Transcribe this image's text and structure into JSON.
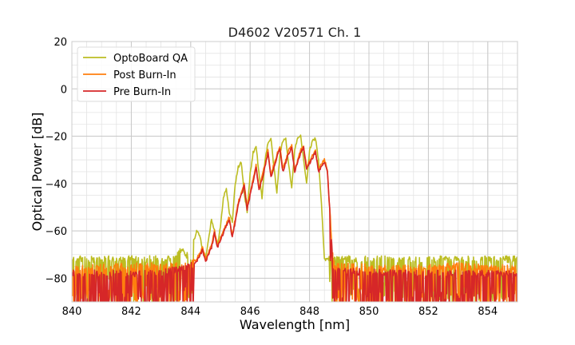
{
  "chart_data": {
    "type": "line",
    "title": "D4602 V20571 Ch. 1",
    "xlabel": "Wavelength [nm]",
    "ylabel": "Optical Power [dB]",
    "xlim": [
      840,
      855
    ],
    "ylim": [
      -90,
      20
    ],
    "xticks": [
      840,
      842,
      844,
      846,
      848,
      850,
      852,
      854
    ],
    "yticks": [
      20,
      0,
      -20,
      -40,
      -60,
      -80
    ],
    "xtick_labels": [
      "840",
      "842",
      "844",
      "846",
      "848",
      "850",
      "852",
      "854"
    ],
    "ytick_labels": [
      "20",
      "0",
      "−20",
      "−40",
      "−60",
      "−80"
    ],
    "grid": true,
    "legend_position": "top-left",
    "series": [
      {
        "name": "OptoBoard QA",
        "color": "#bcbd22",
        "points": [
          [
            840,
            -72
          ],
          [
            842,
            -72
          ],
          [
            843,
            -72
          ],
          [
            843.4,
            -71
          ],
          [
            843.7,
            -68
          ],
          [
            844,
            -72
          ],
          [
            844.1,
            -65
          ],
          [
            844.2,
            -60
          ],
          [
            844.3,
            -62
          ],
          [
            844.4,
            -68
          ],
          [
            844.5,
            -72
          ],
          [
            844.6,
            -64
          ],
          [
            844.7,
            -55
          ],
          [
            844.8,
            -60
          ],
          [
            844.9,
            -66
          ],
          [
            845,
            -58
          ],
          [
            845.1,
            -46
          ],
          [
            845.2,
            -42
          ],
          [
            845.3,
            -52
          ],
          [
            845.4,
            -56
          ],
          [
            845.5,
            -40
          ],
          [
            845.6,
            -33
          ],
          [
            845.7,
            -31
          ],
          [
            845.8,
            -44
          ],
          [
            845.9,
            -52
          ],
          [
            846,
            -36
          ],
          [
            846.1,
            -27
          ],
          [
            846.2,
            -24
          ],
          [
            846.3,
            -36
          ],
          [
            846.4,
            -46
          ],
          [
            846.5,
            -30
          ],
          [
            846.6,
            -23
          ],
          [
            846.7,
            -21
          ],
          [
            846.8,
            -33
          ],
          [
            846.9,
            -44
          ],
          [
            847,
            -28
          ],
          [
            847.1,
            -22
          ],
          [
            847.2,
            -21
          ],
          [
            847.3,
            -32
          ],
          [
            847.4,
            -42
          ],
          [
            847.5,
            -26
          ],
          [
            847.6,
            -21
          ],
          [
            847.7,
            -20
          ],
          [
            847.8,
            -30
          ],
          [
            847.9,
            -40
          ],
          [
            848,
            -26
          ],
          [
            848.1,
            -22
          ],
          [
            848.2,
            -21
          ],
          [
            848.3,
            -30
          ],
          [
            848.4,
            -48
          ],
          [
            848.5,
            -72
          ],
          [
            849,
            -72
          ],
          [
            851,
            -72
          ],
          [
            853,
            -72
          ],
          [
            855,
            -72
          ]
        ]
      },
      {
        "name": "Post Burn-In",
        "color": "#ff7f0e",
        "points": [
          [
            840,
            -76
          ],
          [
            842,
            -75
          ],
          [
            843,
            -75
          ],
          [
            843.6,
            -75
          ],
          [
            844,
            -74
          ],
          [
            844.2,
            -72
          ],
          [
            844.4,
            -67
          ],
          [
            844.5,
            -72
          ],
          [
            844.7,
            -66
          ],
          [
            844.8,
            -60
          ],
          [
            844.9,
            -66
          ],
          [
            845.1,
            -60
          ],
          [
            845.3,
            -54
          ],
          [
            845.4,
            -62
          ],
          [
            845.6,
            -48
          ],
          [
            845.8,
            -40
          ],
          [
            845.9,
            -50
          ],
          [
            846.1,
            -38
          ],
          [
            846.2,
            -32
          ],
          [
            846.3,
            -42
          ],
          [
            846.5,
            -32
          ],
          [
            846.6,
            -26
          ],
          [
            846.7,
            -36
          ],
          [
            846.9,
            -28
          ],
          [
            847,
            -24
          ],
          [
            847.1,
            -34
          ],
          [
            847.3,
            -26
          ],
          [
            847.4,
            -24
          ],
          [
            847.5,
            -34
          ],
          [
            847.7,
            -26
          ],
          [
            847.8,
            -24
          ],
          [
            847.9,
            -33
          ],
          [
            848.1,
            -28
          ],
          [
            848.2,
            -26
          ],
          [
            848.3,
            -34
          ],
          [
            848.5,
            -30
          ],
          [
            848.6,
            -34
          ],
          [
            848.7,
            -55
          ],
          [
            848.8,
            -74
          ],
          [
            849,
            -75
          ],
          [
            851,
            -76
          ],
          [
            853,
            -75
          ],
          [
            855,
            -76
          ]
        ]
      },
      {
        "name": "Pre Burn-In",
        "color": "#d62728",
        "points": [
          [
            840,
            -78
          ],
          [
            842,
            -78
          ],
          [
            843,
            -78
          ],
          [
            843.6,
            -76
          ],
          [
            844,
            -75
          ],
          [
            844.2,
            -73
          ],
          [
            844.4,
            -68
          ],
          [
            844.5,
            -73
          ],
          [
            844.7,
            -67
          ],
          [
            844.8,
            -61
          ],
          [
            844.9,
            -67
          ],
          [
            845.1,
            -61
          ],
          [
            845.3,
            -55
          ],
          [
            845.4,
            -63
          ],
          [
            845.6,
            -49
          ],
          [
            845.8,
            -41
          ],
          [
            845.9,
            -51
          ],
          [
            846.1,
            -39
          ],
          [
            846.2,
            -33
          ],
          [
            846.3,
            -43
          ],
          [
            846.5,
            -33
          ],
          [
            846.6,
            -27
          ],
          [
            846.7,
            -37
          ],
          [
            846.9,
            -29
          ],
          [
            847,
            -25
          ],
          [
            847.1,
            -35
          ],
          [
            847.3,
            -27
          ],
          [
            847.4,
            -25
          ],
          [
            847.5,
            -35
          ],
          [
            847.7,
            -27
          ],
          [
            847.8,
            -25
          ],
          [
            847.9,
            -34
          ],
          [
            848.1,
            -29
          ],
          [
            848.2,
            -27
          ],
          [
            848.3,
            -35
          ],
          [
            848.5,
            -31
          ],
          [
            848.6,
            -35
          ],
          [
            848.7,
            -56
          ],
          [
            848.8,
            -76
          ],
          [
            849,
            -77
          ],
          [
            851,
            -78
          ],
          [
            853,
            -78
          ],
          [
            855,
            -78
          ]
        ]
      }
    ]
  }
}
